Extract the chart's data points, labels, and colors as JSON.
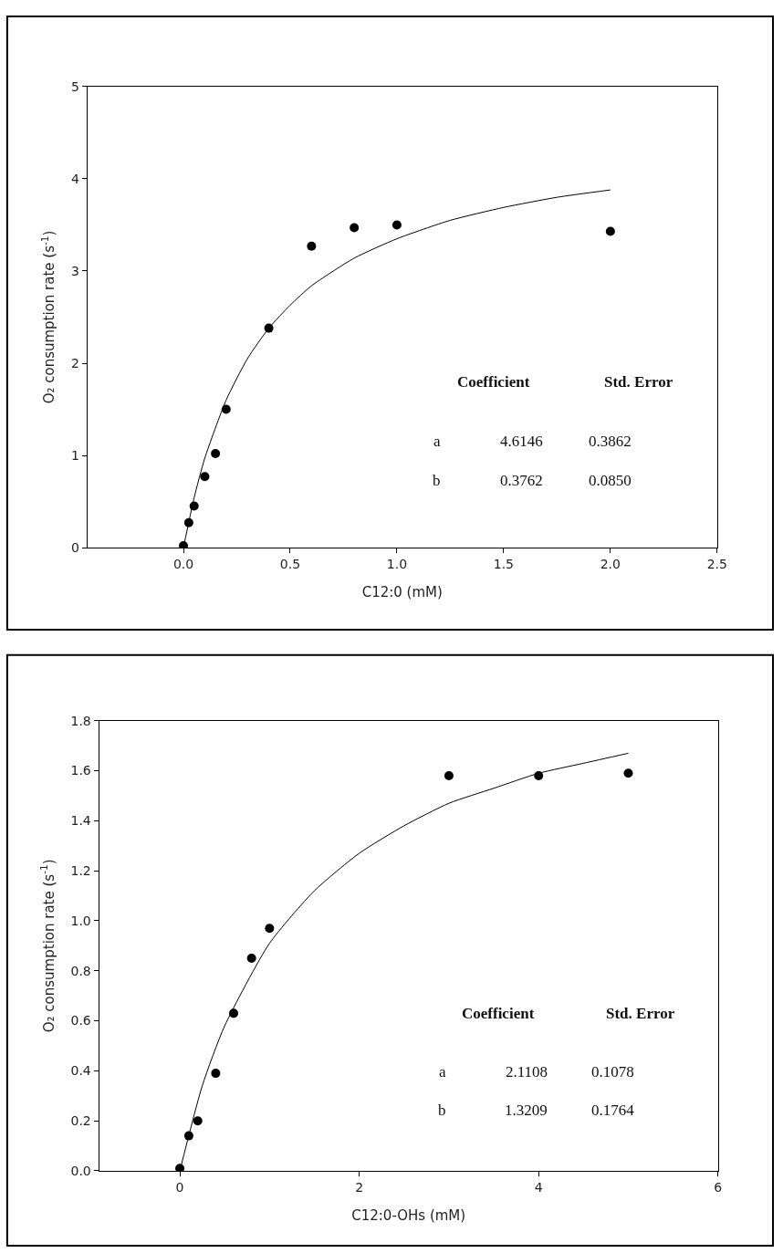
{
  "chart_data": [
    {
      "type": "scatter",
      "xlabel": "C12:0 (mM)",
      "ylabel": "O₂ consumption rate (s$^{-1}$)",
      "xlim": [
        -0.45,
        2.5
      ],
      "xticks": [
        {
          "value": 0,
          "label": "0.0"
        },
        0.5,
        {
          "value": 1,
          "label": "1.0"
        },
        1.5,
        {
          "value": 2,
          "label": "2.0"
        },
        2.5
      ],
      "ylim": [
        0,
        5
      ],
      "yticks": [
        0,
        1,
        2,
        3,
        4,
        5
      ],
      "series": [
        {
          "marker": "circle",
          "color": "#000000",
          "x": [
            0,
            0.025,
            0.05,
            0.1,
            0.15,
            0.2,
            0.4,
            0.6,
            0.8,
            1.0,
            2.0
          ],
          "values": [
            0.02,
            0.27,
            0.45,
            0.77,
            1.02,
            1.5,
            2.38,
            3.27,
            3.47,
            3.5,
            3.43
          ]
        },
        {
          "type": "line",
          "marker": "none",
          "line_style": "solid",
          "color": "#000000",
          "x": [
            0,
            0.05,
            0.1,
            0.2,
            0.3,
            0.4,
            0.5,
            0.6,
            0.8,
            1.0,
            1.25,
            1.5,
            1.75,
            2.0
          ],
          "values": [
            0,
            0.54,
            0.97,
            1.6,
            2.05,
            2.38,
            2.63,
            2.84,
            3.14,
            3.35,
            3.55,
            3.69,
            3.8,
            3.88
          ]
        }
      ],
      "annotations": [
        "Coefficient",
        "Std. Error",
        "a",
        "4.6146",
        "0.3862",
        "b",
        "0.3762",
        "0.0850"
      ]
    },
    {
      "type": "scatter",
      "xlabel": "C12:0-OHs (mM)",
      "ylabel": "O₂ consumption rate (s$^{-1}$)",
      "xlim": [
        -0.9,
        6
      ],
      "xticks": [
        0,
        2,
        4,
        6
      ],
      "ylim": [
        0,
        1.8
      ],
      "yticks": [
        {
          "value": 0,
          "label": "0.0"
        },
        0.2,
        0.4,
        0.6,
        0.8,
        {
          "value": 1,
          "label": "1.0"
        },
        1.2,
        1.4,
        1.6,
        1.8
      ],
      "series": [
        {
          "marker": "circle",
          "color": "#000000",
          "x": [
            0,
            0.1,
            0.2,
            0.4,
            0.6,
            0.8,
            1.0,
            3,
            4,
            5
          ],
          "values": [
            0.01,
            0.14,
            0.2,
            0.39,
            0.63,
            0.85,
            0.97,
            1.58,
            1.58,
            1.59
          ]
        },
        {
          "type": "line",
          "marker": "none",
          "line_style": "solid",
          "color": "#000000",
          "x": [
            0,
            0.25,
            0.5,
            1,
            1.5,
            2,
            2.5,
            3,
            3.5,
            4,
            4.5,
            5
          ],
          "values": [
            0,
            0.34,
            0.58,
            0.91,
            1.12,
            1.27,
            1.38,
            1.47,
            1.53,
            1.59,
            1.63,
            1.67
          ]
        }
      ],
      "annotations": [
        "Coefficient",
        "Std. Error",
        "a",
        "2.1108",
        "0.1078",
        "b",
        "1.3209",
        "0.1764"
      ]
    }
  ]
}
